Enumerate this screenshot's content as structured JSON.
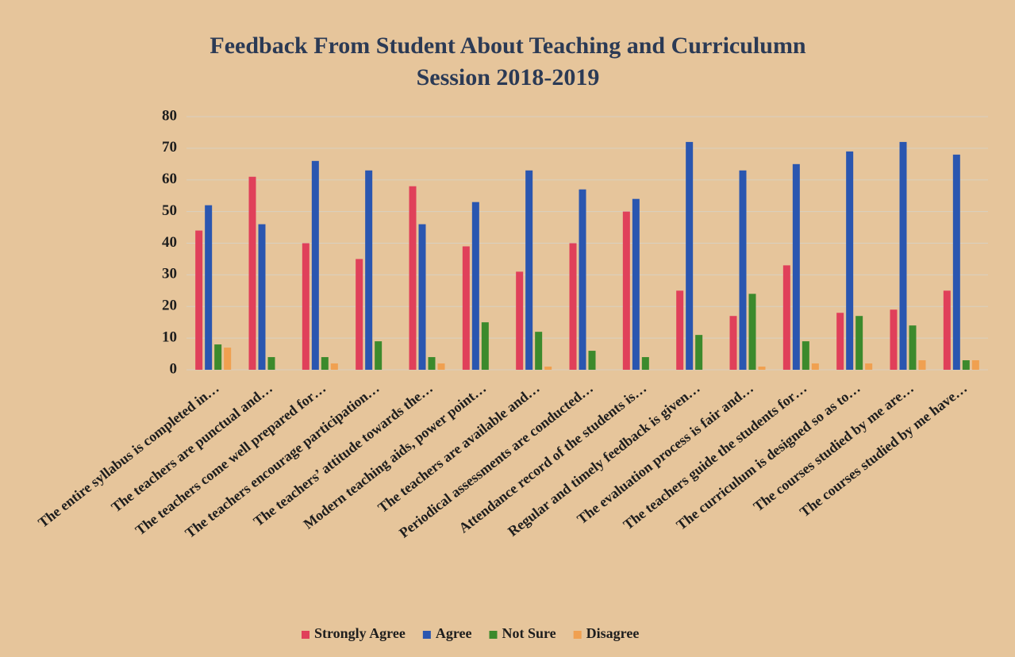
{
  "chart_data": {
    "type": "bar",
    "title": "Feedback From Student About Teaching and Curriculumn",
    "subtitle": "Session 2018-2019",
    "categories": [
      "The entire syllabus is completed in…",
      "The teachers are punctual and…",
      "The teachers come well prepared for…",
      "The teachers encourage participation…",
      "The teachers’ attitude towards the…",
      "Modern teaching aids, power point…",
      "The teachers are available and…",
      "Periodical assessments are conducted…",
      "Attendance record of the students is…",
      "Regular and timely feedback is given…",
      "The evaluation process is fair and…",
      "The teachers guide the students for…",
      "The curriculum is designed so as to…",
      "The courses studied by me are…",
      "The courses studied by me have…"
    ],
    "series": [
      {
        "name": "Strongly Agree",
        "color": "#e0405a",
        "values": [
          44,
          61,
          40,
          35,
          58,
          39,
          31,
          40,
          50,
          25,
          17,
          33,
          18,
          19,
          25
        ]
      },
      {
        "name": "Agree",
        "color": "#2a56b0",
        "values": [
          52,
          46,
          66,
          63,
          46,
          53,
          63,
          57,
          54,
          72,
          63,
          65,
          69,
          72,
          68
        ]
      },
      {
        "name": "Not Sure",
        "color": "#3c8a2c",
        "values": [
          8,
          4,
          4,
          9,
          4,
          15,
          12,
          6,
          4,
          11,
          24,
          9,
          17,
          14,
          3
        ]
      },
      {
        "name": "Disagree",
        "color": "#f0a050",
        "values": [
          7,
          0,
          2,
          0,
          2,
          0,
          1,
          0,
          0,
          0,
          1,
          2,
          2,
          3,
          3
        ]
      }
    ],
    "ylim": [
      0,
      80
    ],
    "yticks": [
      0,
      10,
      20,
      30,
      40,
      50,
      60,
      70,
      80
    ],
    "grid": true,
    "legend": "bottom"
  }
}
